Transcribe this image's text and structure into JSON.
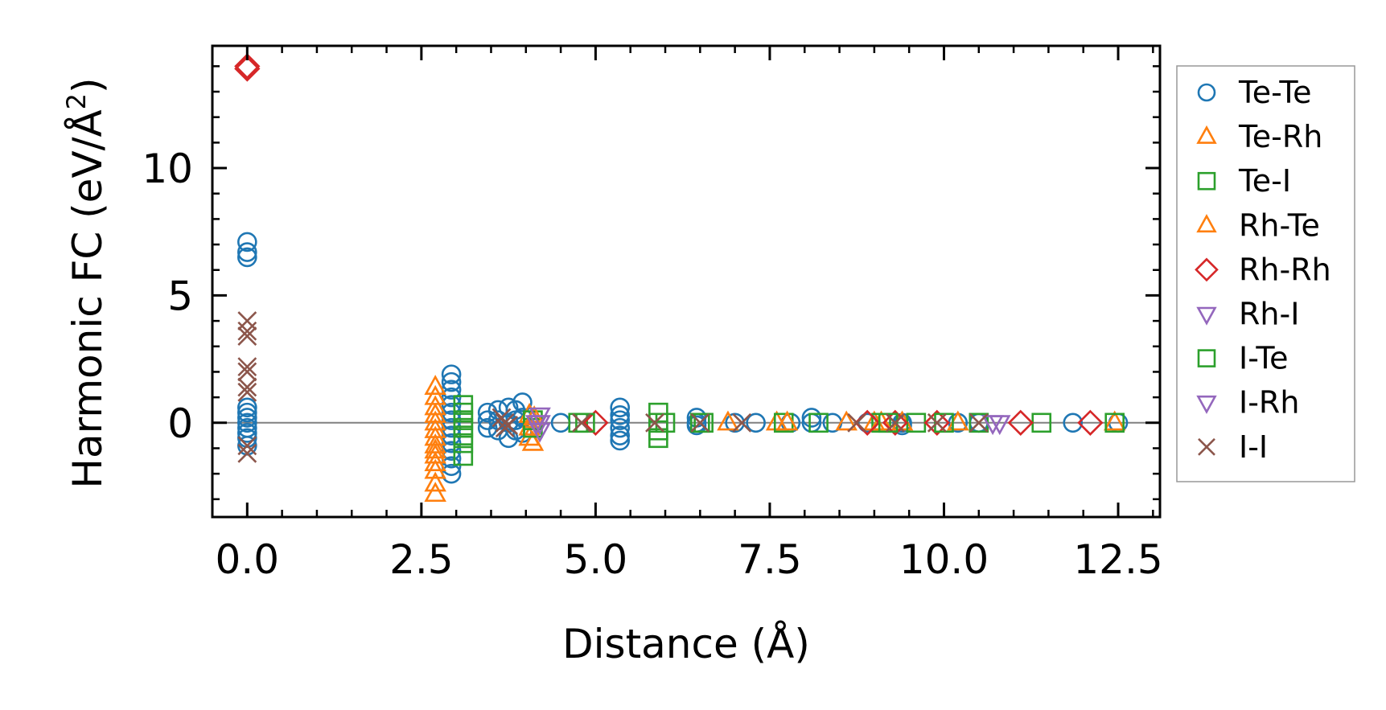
{
  "chart_data": {
    "type": "scatter",
    "xlabel": "Distance (Å)",
    "ylabel_main": "Harmonic FC (eV/Å",
    "ylabel_sup": "2",
    "ylabel_close": ")",
    "xlim": [
      -0.5,
      13.1
    ],
    "ylim": [
      -3.7,
      14.8
    ],
    "xticks": [
      0.0,
      2.5,
      5.0,
      7.5,
      10.0,
      12.5
    ],
    "xtick_labels": [
      "0.0",
      "2.5",
      "5.0",
      "7.5",
      "10.0",
      "12.5"
    ],
    "yticks": [
      0,
      5,
      10
    ],
    "ytick_labels": [
      "0",
      "5",
      "10"
    ],
    "zero_line": 0,
    "legend_position": "outside-right",
    "series": [
      {
        "name": "Te-Te",
        "color": "#1f77b4",
        "marker": "circle",
        "x": [
          0,
          0,
          0,
          0,
          0,
          0,
          0,
          0,
          0,
          0,
          0,
          2.93,
          2.93,
          2.93,
          2.93,
          2.93,
          2.93,
          2.93,
          2.93,
          2.93,
          2.93,
          2.93,
          2.93,
          2.93,
          2.93,
          3.45,
          3.45,
          3.45,
          3.6,
          3.6,
          3.6,
          3.75,
          3.75,
          3.75,
          3.85,
          3.85,
          3.85,
          3.95,
          3.95,
          3.95,
          4.5,
          5.35,
          5.35,
          5.35,
          5.35,
          5.35,
          5.35,
          6.45,
          6.45,
          6.45,
          7.0,
          7.3,
          7.8,
          8.1,
          8.1,
          8.4,
          8.9,
          9.4,
          9.4,
          10.2,
          10.5,
          10.5,
          11.85,
          12.5
        ],
        "y": [
          7.1,
          6.7,
          6.5,
          0.6,
          0.4,
          0.2,
          0,
          -0.2,
          -0.4,
          -0.6,
          -0.9,
          1.9,
          1.6,
          1.3,
          1.0,
          0.7,
          0.4,
          0.1,
          -0.2,
          -0.5,
          -0.8,
          -1.1,
          -1.4,
          -1.7,
          -2.0,
          0.4,
          0.1,
          -0.2,
          0.5,
          0.1,
          -0.3,
          0.6,
          0.0,
          -0.6,
          0.5,
          0.1,
          -0.3,
          0.8,
          0.2,
          -0.4,
          0.0,
          0.6,
          0.3,
          0.1,
          -0.2,
          -0.5,
          -0.7,
          0.2,
          0.0,
          -0.1,
          0.0,
          0.0,
          0.0,
          0.2,
          0.0,
          0.0,
          0.0,
          0.0,
          -0.1,
          0.0,
          0.0,
          0.0,
          0.0,
          0.0
        ]
      },
      {
        "name": "Te-Rh",
        "color": "#ff7f0e",
        "marker": "triangle-up",
        "x": [
          2.7,
          2.7,
          2.7,
          2.7,
          2.7,
          2.7,
          2.7,
          2.7,
          2.7,
          2.7,
          2.7,
          2.7,
          2.7,
          2.7,
          4.05,
          4.05,
          4.05,
          4.1,
          4.1,
          6.9,
          7.6,
          8.6,
          9.0,
          9.4,
          10.2
        ],
        "y": [
          1.4,
          1.0,
          0.6,
          0.3,
          0.0,
          -0.3,
          -0.6,
          -0.9,
          -1.1,
          -1.3,
          -1.6,
          -1.9,
          -2.4,
          -2.8,
          0.3,
          -0.2,
          -0.6,
          0.1,
          -0.8,
          0.0,
          0.0,
          0.0,
          0.0,
          0.0,
          0.0
        ]
      },
      {
        "name": "Te-I",
        "color": "#2ca02c",
        "marker": "square",
        "x": [
          3.1,
          3.1,
          3.1,
          3.1,
          3.1,
          3.1,
          3.1,
          4.1,
          4.1,
          4.75,
          5.9,
          5.9,
          5.9,
          5.9,
          6.55,
          7.7,
          8.2,
          9.1,
          9.6,
          10.5,
          11.4
        ],
        "y": [
          0.7,
          0.4,
          0.1,
          -0.2,
          -0.5,
          -0.8,
          -1.3,
          0.1,
          -0.2,
          0.0,
          0.4,
          0.0,
          -0.3,
          -0.6,
          0.0,
          0.0,
          0.0,
          0.0,
          0.0,
          0.0,
          0.0
        ]
      },
      {
        "name": "Rh-Te",
        "color": "#ff7f0e",
        "marker": "triangle-up",
        "x": [
          4.12,
          7.75,
          9.1,
          12.45
        ],
        "y": [
          0.2,
          0.0,
          0.0,
          0.0
        ]
      },
      {
        "name": "Rh-Rh",
        "color": "#d62728",
        "marker": "diamond",
        "x": [
          0,
          0,
          5.0,
          8.9,
          9.3,
          9.9,
          11.1,
          12.1
        ],
        "y": [
          14.0,
          13.9,
          0.0,
          0.0,
          0.0,
          0.0,
          0.0,
          0.0
        ]
      },
      {
        "name": "Rh-I",
        "color": "#9467bd",
        "marker": "triangle-down",
        "x": [
          4.2,
          4.2,
          4.2,
          10.8
        ],
        "y": [
          0.3,
          0.0,
          -0.3,
          0.0
        ]
      },
      {
        "name": "I-Te",
        "color": "#2ca02c",
        "marker": "square",
        "x": [
          4.85,
          6.0,
          6.5,
          9.2,
          10.0,
          12.45
        ],
        "y": [
          0.0,
          0.0,
          0.0,
          0.0,
          0.0,
          0.0
        ]
      },
      {
        "name": "I-Rh",
        "color": "#9467bd",
        "marker": "triangle-down",
        "x": [
          4.15,
          10.7
        ],
        "y": [
          0.0,
          0.0
        ]
      },
      {
        "name": "I-I",
        "color": "#8c564b",
        "marker": "x",
        "x": [
          0,
          0,
          0,
          0,
          0,
          0,
          0,
          0,
          0,
          3.65,
          3.7,
          3.7,
          3.75,
          4.8,
          5.85,
          6.5,
          7.1,
          8.75,
          9.3,
          9.9,
          10.5
        ],
        "y": [
          4.0,
          3.6,
          3.4,
          2.2,
          2.0,
          1.4,
          1.2,
          -0.9,
          -1.2,
          0.2,
          0.0,
          -0.2,
          -0.1,
          0.0,
          0.0,
          0.0,
          0.0,
          0.0,
          0.0,
          0.0,
          0.0
        ]
      }
    ]
  }
}
